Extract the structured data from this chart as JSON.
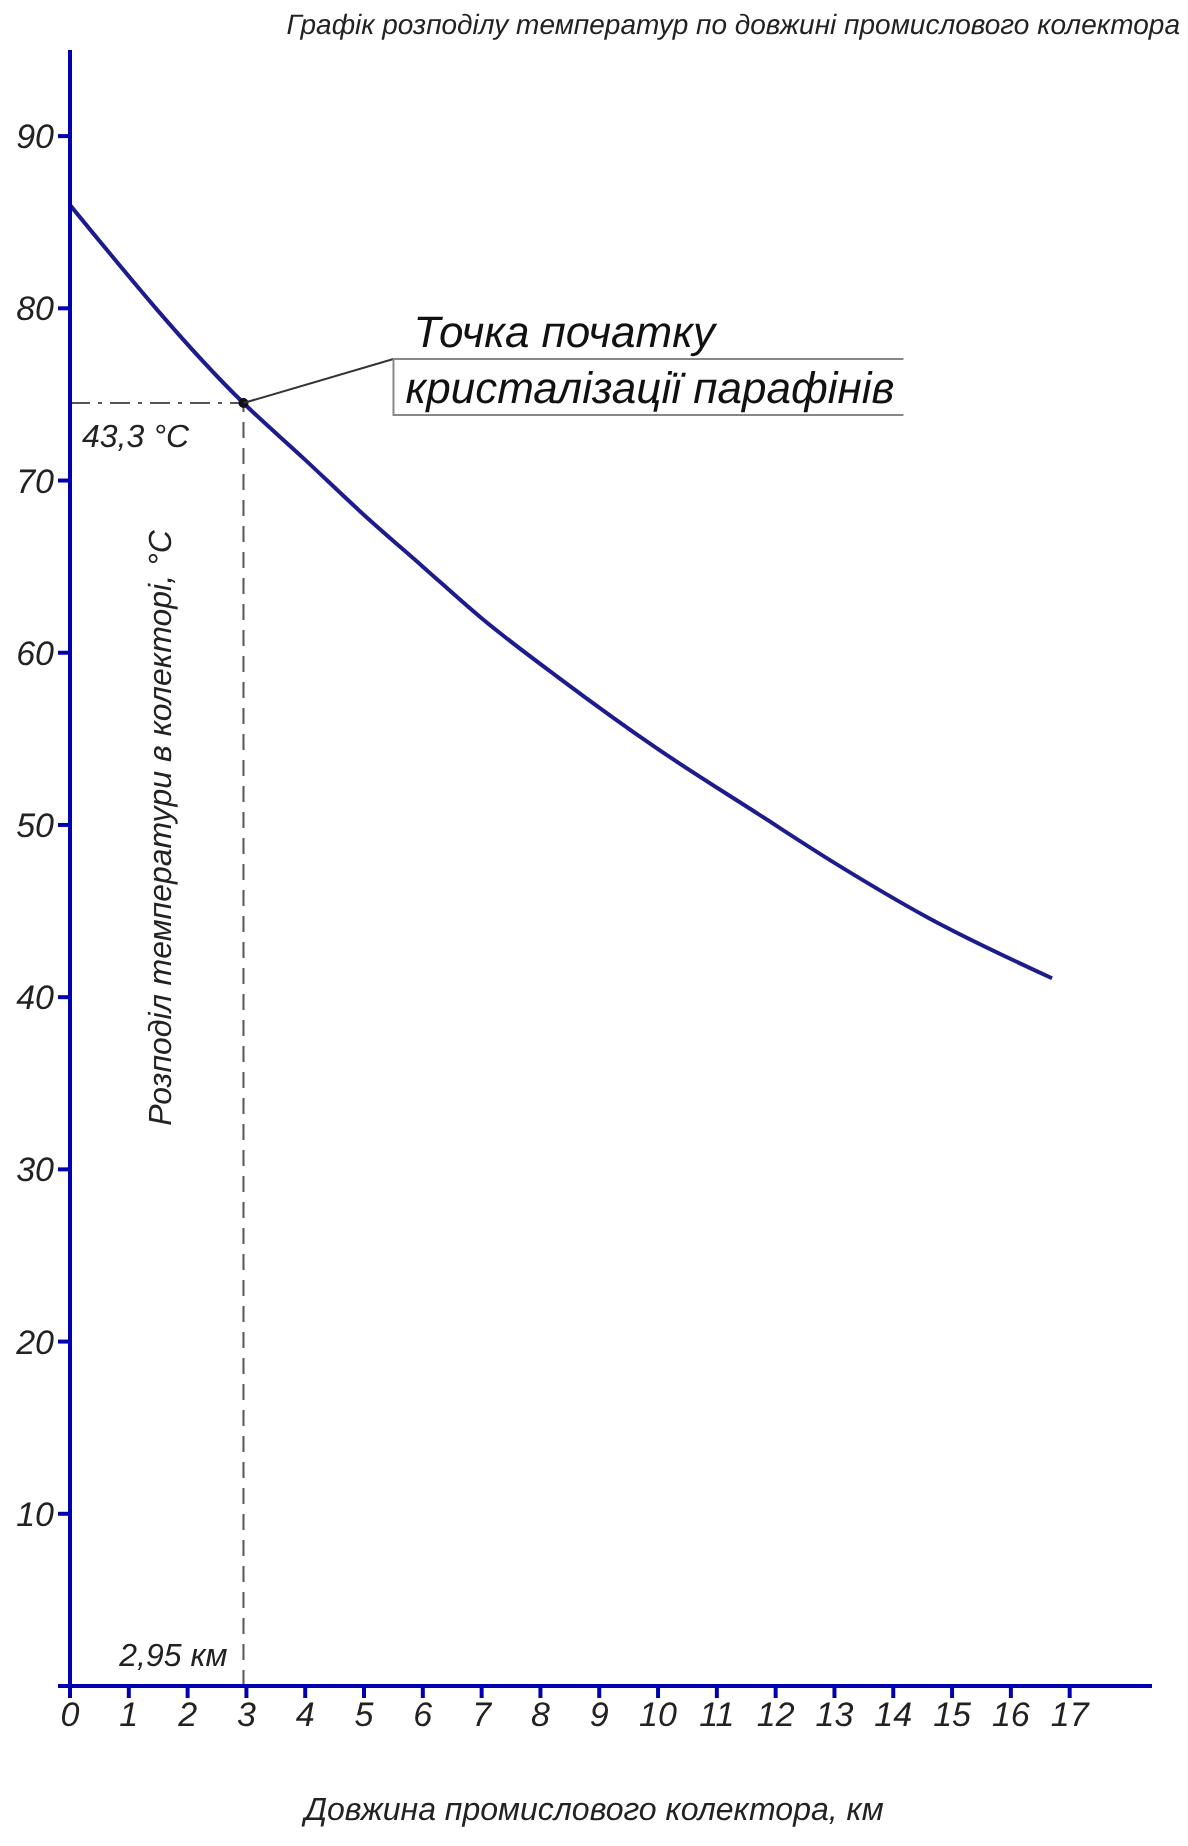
{
  "chart_data": {
    "type": "line",
    "title": "Графік розподілу температур по довжині промислового колектора",
    "xlabel": "Довжина промислового колектора, км",
    "ylabel": "Розподіл температури в колекторі, °C",
    "x": [
      0,
      2.95,
      4,
      5,
      6,
      7,
      8.33,
      10,
      11.72,
      13,
      14.6,
      16.7
    ],
    "series": [
      {
        "color": "#1c1c8c",
        "values": [
          86,
          74.5,
          71.2,
          68,
          65,
          62,
          58.5,
          54.4,
          50.6,
          47.8,
          44.6,
          41.1
        ]
      }
    ],
    "xlim": [
      0,
      18.4
    ],
    "xticks": [
      0,
      1,
      2,
      3,
      4,
      5,
      6,
      7,
      8,
      9,
      10,
      11,
      12,
      13,
      14,
      15,
      16,
      17
    ],
    "ylim": [
      0,
      95
    ],
    "yticks": [
      {
        "value": 0,
        "label": null
      },
      10,
      20,
      30,
      40,
      50,
      60,
      70,
      80,
      90
    ],
    "ref_lines": [
      {
        "axis": "x",
        "value": 2.95,
        "label": "2,95 км",
        "line_style": "dashed"
      },
      {
        "axis": "y",
        "value": 74.5,
        "label": "43,3 °C",
        "line_style": "dashdot"
      }
    ],
    "annotations": [
      {
        "text": "Точка початку кристалізації парафінів",
        "x": 2.95,
        "y": 74.5
      }
    ],
    "marker": "none",
    "line_style": "solid"
  }
}
